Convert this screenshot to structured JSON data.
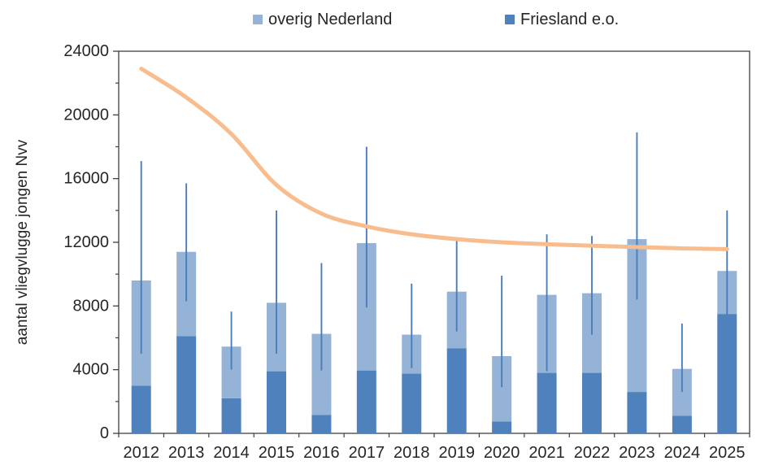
{
  "chart_data": {
    "type": "bar",
    "subtype": "stacked-bars-with-error-bars-and-trendline",
    "title": "",
    "ylabel": "aantal vliegvlugge jongen Nvv",
    "xlabel": "",
    "ylim": [
      0,
      24000
    ],
    "ytick_step": 4000,
    "yminor_step": 2000,
    "ytick_labels": [
      "0",
      "4000",
      "8000",
      "12000",
      "16000",
      "20000",
      "24000"
    ],
    "grid": "off",
    "legend_position": "top",
    "categories": [
      "2012",
      "2013",
      "2014",
      "2015",
      "2016",
      "2017",
      "2018",
      "2019",
      "2020",
      "2021",
      "2022",
      "2023",
      "2024",
      "2025"
    ],
    "series": [
      {
        "name": "Friesland e.o.",
        "color": "#4f81bd",
        "values": [
          3000,
          6100,
          2200,
          3900,
          1150,
          3950,
          3750,
          5350,
          750,
          3800,
          3800,
          2600,
          1100,
          7500
        ]
      },
      {
        "name": "overig Nederland",
        "color": "#95b3d7",
        "values": [
          6600,
          5300,
          3250,
          4300,
          5100,
          8000,
          2450,
          3550,
          4100,
          4900,
          5000,
          9600,
          2950,
          2700
        ]
      }
    ],
    "stacked_totals": [
      9600,
      11400,
      5450,
      8200,
      6250,
      11950,
      6200,
      8900,
      4850,
      8700,
      8800,
      12200,
      4050,
      10200
    ],
    "error_bars": {
      "color": "#4a7ebb",
      "low": [
        5000,
        8300,
        4000,
        5000,
        3950,
        7900,
        4100,
        6400,
        2900,
        3900,
        6200,
        8400,
        2600,
        7400
      ],
      "high": [
        17100,
        15700,
        7650,
        14000,
        10700,
        18000,
        9400,
        12100,
        9900,
        12500,
        12400,
        18900,
        6900,
        14000
      ]
    },
    "trendline": {
      "color": "#f8bd8e",
      "values": [
        22900,
        21100,
        18800,
        15600,
        13800,
        13000,
        12500,
        12200,
        12000,
        11880,
        11780,
        11700,
        11620,
        11570
      ]
    }
  },
  "legend": {
    "items": [
      {
        "label": "overig Nederland",
        "color": "#95b3d7"
      },
      {
        "label": "Friesland e.o.",
        "color": "#4f81bd"
      }
    ]
  },
  "colors": {
    "axis": "#404040",
    "text": "#262626",
    "background": "#ffffff"
  }
}
